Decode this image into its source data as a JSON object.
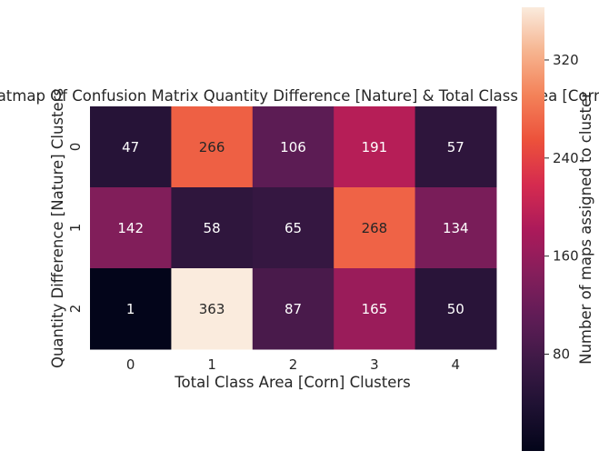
{
  "chart_data": {
    "type": "heatmap",
    "title": "Heatmap Of Confusion Matrix Quantity Difference [Nature] & Total Class Area [Corn]",
    "xlabel": "Total Class Area [Corn] Clusters",
    "ylabel": "Quantity Difference [Nature] Clusters",
    "x_categories": [
      "0",
      "1",
      "2",
      "3",
      "4"
    ],
    "y_categories": [
      "0",
      "1",
      "2"
    ],
    "values": [
      [
        47,
        266,
        106,
        191,
        57
      ],
      [
        142,
        58,
        65,
        268,
        134
      ],
      [
        1,
        363,
        87,
        165,
        50
      ]
    ],
    "colorbar": {
      "label": "Number of maps assigned to cluster",
      "range": [
        1,
        363
      ],
      "ticks": [
        80,
        160,
        240,
        320
      ],
      "colormap": "rocket"
    },
    "grid": false,
    "legend": "right"
  }
}
